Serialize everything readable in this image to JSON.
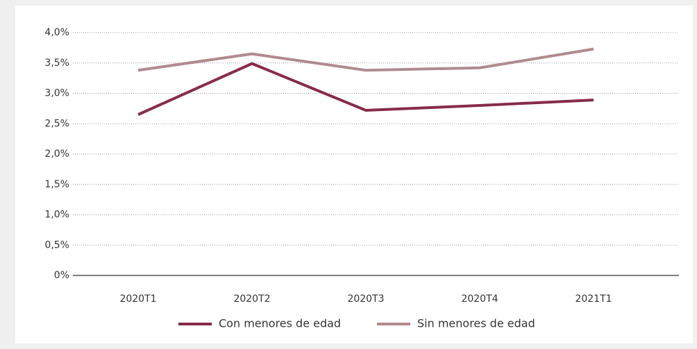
{
  "chart_data": {
    "type": "line",
    "categories": [
      "2020T1",
      "2020T2",
      "2020T3",
      "2020T4",
      "2021T1"
    ],
    "series": [
      {
        "name": "Con menores de edad",
        "color": "#862c48",
        "values": [
          2.65,
          3.49,
          2.72,
          2.8,
          2.89
        ]
      },
      {
        "name": "Sin menores de edad",
        "color": "#b08a91",
        "values": [
          3.38,
          3.65,
          3.38,
          3.42,
          3.73
        ]
      }
    ],
    "ylim": [
      0,
      4
    ],
    "yticks": [
      {
        "value": 0,
        "label": "0%"
      },
      {
        "value": 0.5,
        "label": "0,5%"
      },
      {
        "value": 1,
        "label": "1,0%"
      },
      {
        "value": 1.5,
        "label": "1,5%"
      },
      {
        "value": 2,
        "label": "2,0%"
      },
      {
        "value": 2.5,
        "label": "2,5%"
      },
      {
        "value": 3,
        "label": "3,0%"
      },
      {
        "value": 3.5,
        "label": "3,5%"
      },
      {
        "value": 4,
        "label": "4,0%"
      }
    ],
    "grid": true,
    "legend": "bottom"
  }
}
